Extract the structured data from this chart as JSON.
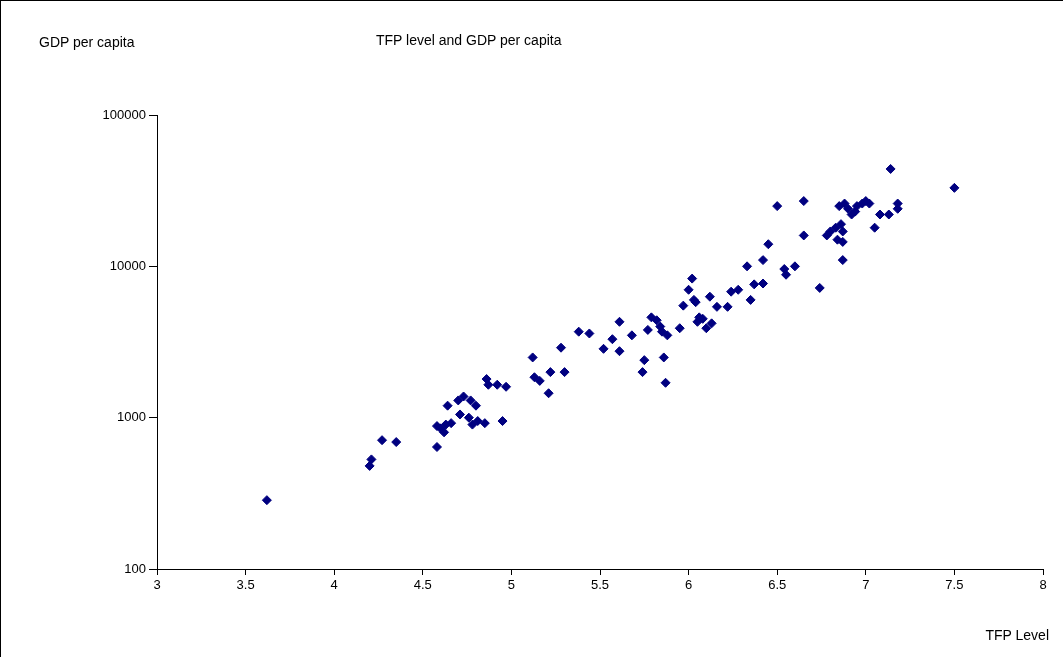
{
  "chart_data": {
    "type": "scatter",
    "title": "TFP level and GDP per capita",
    "xlabel": "TFP Level",
    "ylabel": "GDP per capita",
    "log": "y",
    "grid": false,
    "legend": false,
    "marker": "diamond",
    "xlim": [
      3,
      8
    ],
    "xticks": [
      3,
      3.5,
      4,
      4.5,
      5,
      5.5,
      6,
      6.5,
      7,
      7.5,
      8
    ],
    "ylim": [
      100,
      100000
    ],
    "yticks": [
      100,
      1000,
      10000,
      100000
    ],
    "series": [
      {
        "color": "#000080",
        "x": [
          3.62,
          4.2,
          4.21,
          4.27,
          4.35,
          4.58,
          4.58,
          4.6,
          4.62,
          4.63,
          4.64,
          4.66,
          4.7,
          4.71,
          4.73,
          4.76,
          4.77,
          4.78,
          4.8,
          4.81,
          4.85,
          4.86,
          4.87,
          4.92,
          4.95,
          4.97,
          5.12,
          5.13,
          5.16,
          5.21,
          5.22,
          5.28,
          5.3,
          5.38,
          5.44,
          5.52,
          5.57,
          5.61,
          5.61,
          5.68,
          5.74,
          5.75,
          5.77,
          5.79,
          5.82,
          5.84,
          5.85,
          5.86,
          5.87,
          5.88,
          5.95,
          5.97,
          6.0,
          6.02,
          6.03,
          6.04,
          6.05,
          6.06,
          6.08,
          6.1,
          6.12,
          6.13,
          6.16,
          6.22,
          6.24,
          6.28,
          6.33,
          6.35,
          6.37,
          6.42,
          6.42,
          6.45,
          6.5,
          6.54,
          6.55,
          6.6,
          6.65,
          6.65,
          6.74,
          6.78,
          6.8,
          6.83,
          6.84,
          6.85,
          6.86,
          6.87,
          6.87,
          6.87,
          6.88,
          6.9,
          6.92,
          6.94,
          6.95,
          6.98,
          7.0,
          7.02,
          7.05,
          7.08,
          7.13,
          7.14,
          7.18,
          7.18,
          7.5
        ],
        "values": [
          285,
          480,
          530,
          710,
          690,
          640,
          880,
          850,
          800,
          900,
          1200,
          920,
          1300,
          1050,
          1380,
          1000,
          1300,
          900,
          1200,
          950,
          920,
          1800,
          1650,
          1650,
          950,
          1600,
          2500,
          1850,
          1750,
          1450,
          2000,
          2900,
          2000,
          3700,
          3600,
          2850,
          3300,
          4300,
          2750,
          3500,
          2000,
          2400,
          3800,
          4600,
          4400,
          4000,
          3700,
          2500,
          1700,
          3500,
          3900,
          5500,
          7000,
          8300,
          6000,
          5800,
          4300,
          4600,
          4500,
          3900,
          6300,
          4200,
          5400,
          5400,
          6800,
          7000,
          10000,
          6000,
          7600,
          11000,
          7700,
          14000,
          25000,
          9600,
          8800,
          10000,
          27000,
          16000,
          7200,
          16000,
          17000,
          18000,
          15000,
          25000,
          19000,
          11000,
          14500,
          17000,
          26000,
          24000,
          22000,
          23000,
          25000,
          26000,
          27000,
          26000,
          18000,
          22000,
          22000,
          44000,
          26000,
          24000,
          33000
        ]
      }
    ]
  }
}
